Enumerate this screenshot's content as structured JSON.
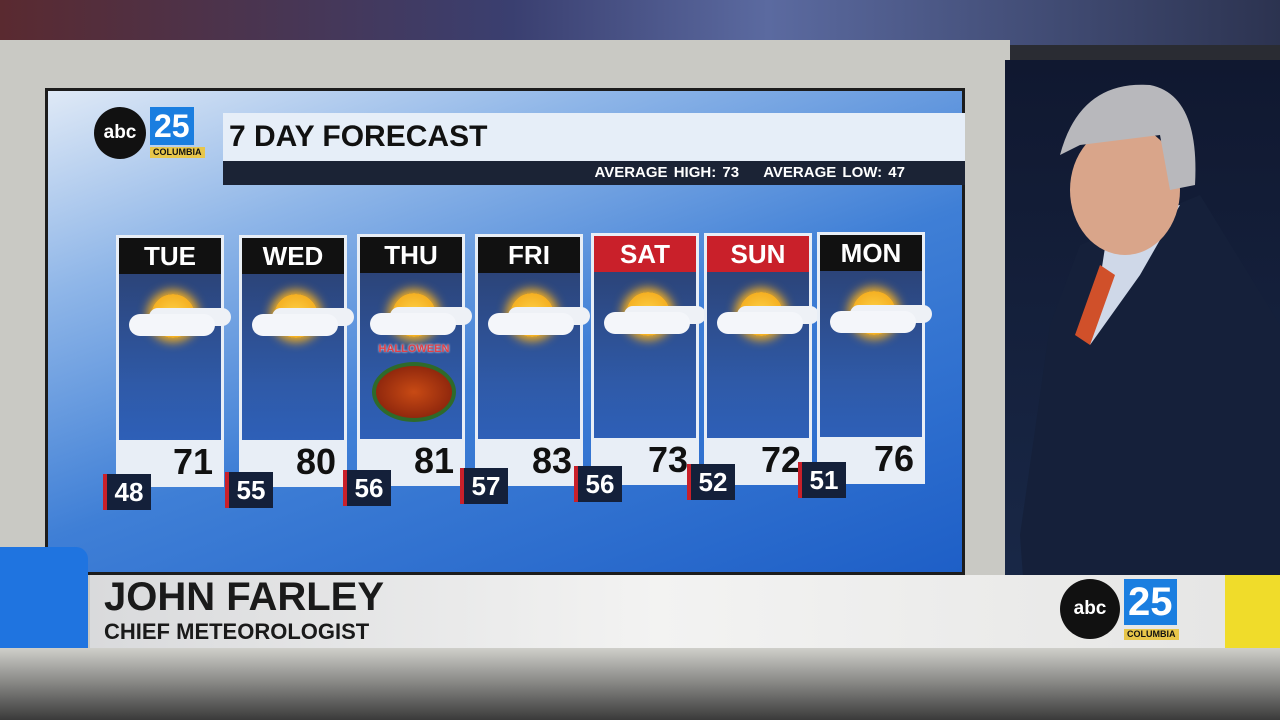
{
  "graphic": {
    "logo": {
      "text": "abc",
      "number": "25",
      "city": "COLUMBIA"
    },
    "title": "7 DAY FORECAST",
    "average_high": "AVERAGE HIGH: 73",
    "average_low": "AVERAGE LOW: 47",
    "days": [
      {
        "day": "TUE",
        "high": "71",
        "low": "48",
        "icon": "partly-cloudy-icon",
        "weekend": false
      },
      {
        "day": "WED",
        "high": "80",
        "low": "55",
        "icon": "partly-cloudy-icon",
        "weekend": false
      },
      {
        "day": "THU",
        "high": "81",
        "low": "56",
        "icon": "partly-cloudy-icon",
        "weekend": false,
        "badge": "HALLOWEEN"
      },
      {
        "day": "FRI",
        "high": "83",
        "low": "57",
        "icon": "partly-cloudy-icon",
        "weekend": false
      },
      {
        "day": "SAT",
        "high": "73",
        "low": "56",
        "icon": "partly-cloudy-icon",
        "weekend": true
      },
      {
        "day": "SUN",
        "high": "72",
        "low": "52",
        "icon": "partly-cloudy-icon",
        "weekend": true
      },
      {
        "day": "MON",
        "high": "76",
        "low": "51",
        "icon": "partly-cloudy-icon",
        "weekend": false
      }
    ]
  },
  "lower_third": {
    "name": "JOHN FARLEY",
    "role": "CHIEF METEOROLOGIST",
    "logo": {
      "text": "abc",
      "number": "25",
      "city": "COLUMBIA"
    }
  },
  "colors": {
    "weekend_header": "#c9202a",
    "brand_blue": "#1f74e0",
    "brand_yellow": "#f0dc2a"
  }
}
